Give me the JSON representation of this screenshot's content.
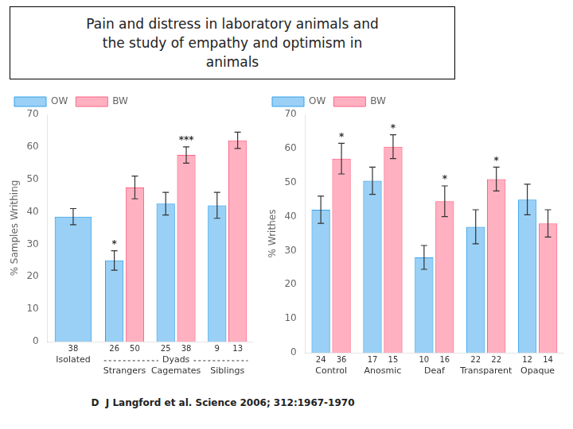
{
  "title": [
    "Pain and distress in laboratory animals and",
    "the study of empathy and optimism in",
    "animals"
  ],
  "annotations": [
    "D  J Langford et al. Science 2006; 312:1967-1970"
  ],
  "chart_data": [
    {
      "type": "bar",
      "ylabel": "% Samples Writhing",
      "categories": [
        "Isolated",
        "Strangers",
        "Cagemates",
        "Siblings"
      ],
      "category_groups": [
        {
          "name": "Dyads",
          "categories": [
            "Strangers",
            "Cagemates",
            "Siblings"
          ]
        }
      ],
      "series": [
        {
          "name": "OW",
          "values": [
            38.5,
            25.0,
            42.5,
            42.0
          ],
          "errors": [
            2.5,
            3.0,
            3.5,
            4.0
          ],
          "n": [
            "38",
            "26",
            "25",
            "9"
          ],
          "sig_labels": [
            null,
            "*",
            null,
            null
          ]
        },
        {
          "name": "BW",
          "values": [
            null,
            47.5,
            57.5,
            62.0
          ],
          "errors": [
            null,
            3.5,
            2.5,
            2.5
          ],
          "n": [
            null,
            "50",
            "38",
            "13"
          ],
          "sig_labels": [
            null,
            null,
            "***",
            null
          ]
        }
      ],
      "ylim": [
        0,
        70
      ],
      "yticks": [
        0,
        10,
        20,
        30,
        40,
        50,
        60,
        70
      ],
      "grid": false,
      "legend": "upper left"
    },
    {
      "type": "bar",
      "ylabel": "% Writhes",
      "categories": [
        "Control",
        "Anosmic",
        "Deaf",
        "Transparent",
        "Opaque"
      ],
      "series": [
        {
          "name": "OW",
          "values": [
            42.0,
            50.5,
            28.0,
            37.0,
            45.0
          ],
          "errors": [
            4.0,
            4.0,
            3.5,
            5.0,
            4.5
          ],
          "n": [
            "24",
            "17",
            "10",
            "22",
            "12"
          ]
        },
        {
          "name": "BW",
          "values": [
            57.0,
            60.5,
            44.5,
            51.0,
            38.0
          ],
          "errors": [
            4.5,
            3.5,
            4.5,
            3.5,
            4.0
          ],
          "n": [
            "36",
            "15",
            "16",
            "22",
            "14"
          ],
          "sig_labels": [
            "*",
            "*",
            "*",
            "*",
            null
          ]
        }
      ],
      "ylim": [
        0,
        70
      ],
      "yticks": [
        0,
        10,
        20,
        30,
        40,
        50,
        60,
        70
      ],
      "grid": false,
      "legend": "upper left"
    }
  ]
}
